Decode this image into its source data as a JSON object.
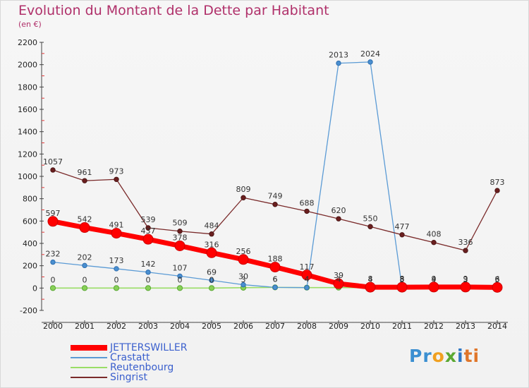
{
  "header": {
    "title": "Evolution du Montant de la Dette par Habitant",
    "subtitle": "(en €)"
  },
  "brand": {
    "text": "Proxiti"
  },
  "chart_data": {
    "type": "line",
    "x": [
      "2000",
      "2001",
      "2002",
      "2003",
      "2004",
      "2005",
      "2006",
      "2007",
      "2008",
      "2009",
      "2010",
      "2011",
      "2012",
      "2013",
      "2014"
    ],
    "ylim": [
      -200,
      2200
    ],
    "yticks": [
      -200,
      0,
      200,
      400,
      600,
      800,
      1000,
      1200,
      1400,
      1600,
      1800,
      2000,
      2200
    ],
    "grid": false,
    "legend_position": "bottom-left",
    "series": [
      {
        "name": "JETTERSWILLER",
        "color": "#ff0000",
        "values": [
          597,
          542,
          491,
          437,
          378,
          316,
          256,
          188,
          117,
          39,
          8,
          8,
          9,
          9,
          6
        ]
      },
      {
        "name": "Crastatt",
        "color": "#5b9bd5",
        "values": [
          232,
          202,
          173,
          142,
          107,
          69,
          30,
          6,
          4,
          2013,
          2024,
          3,
          4,
          3,
          6
        ]
      },
      {
        "name": "Reutenbourg",
        "color": "#99dd66",
        "values": [
          0,
          0,
          0,
          0,
          0,
          0,
          3,
          6,
          4,
          4,
          4,
          5,
          4,
          3,
          3
        ]
      },
      {
        "name": "Singrist",
        "color": "#7a2a2a",
        "values": [
          1057,
          961,
          973,
          539,
          509,
          484,
          809,
          749,
          688,
          620,
          550,
          477,
          408,
          336,
          873
        ]
      }
    ]
  }
}
